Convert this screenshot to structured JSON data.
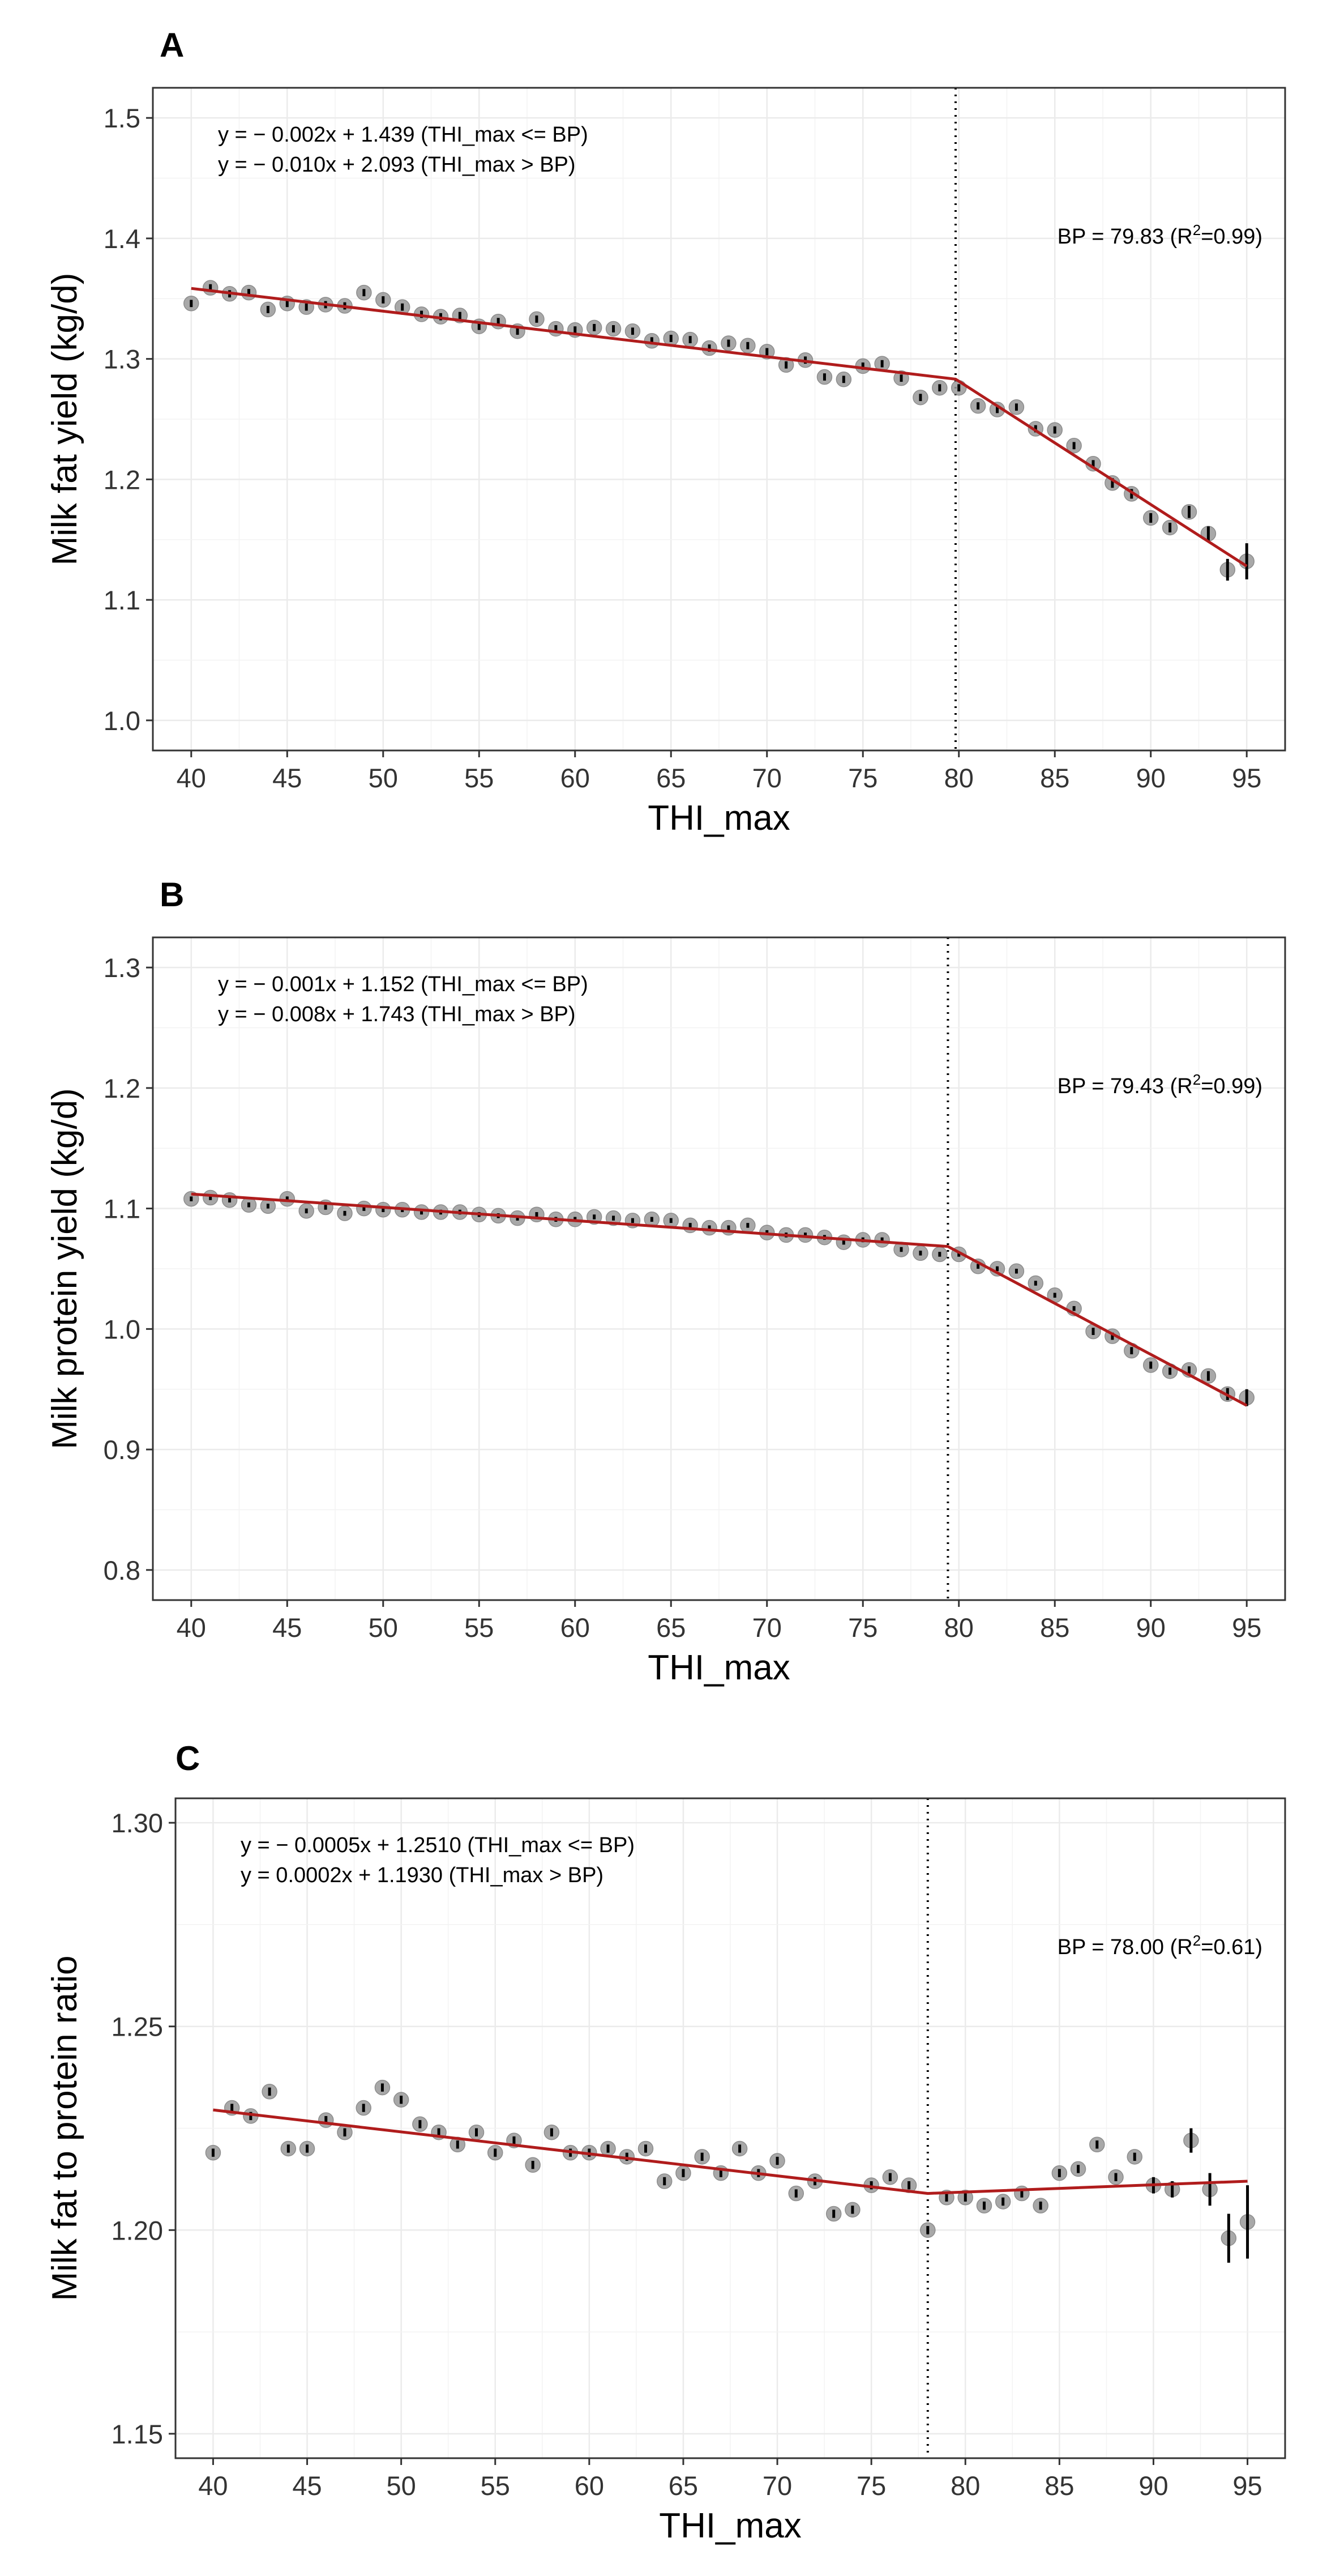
{
  "charts": [
    {
      "panel_label": "A",
      "chart_data": {
        "type": "scatter",
        "title": "",
        "xlabel": "THI_max",
        "ylabel": "Milk fat yield (kg/d)",
        "xlim": [
          38.0,
          97.0
        ],
        "ylim": [
          0.975,
          1.525
        ],
        "xticks": [
          40,
          45,
          50,
          55,
          60,
          65,
          70,
          75,
          80,
          85,
          90,
          95
        ],
        "xtick_labels": [
          "40",
          "45",
          "50",
          "55",
          "60",
          "65",
          "70",
          "75",
          "80",
          "85",
          "90",
          "95"
        ],
        "yticks": [
          1.0,
          1.1,
          1.2,
          1.3,
          1.4,
          1.5
        ],
        "ytick_labels": [
          "1.0",
          "1.1",
          "1.2",
          "1.3",
          "1.4",
          "1.5"
        ],
        "equations": [
          "y = − 0.002x + 1.439 (THI_max <= BP)",
          "y = − 0.010x + 2.093 (THI_max > BP)"
        ],
        "bp_label": "BP = 79.83 (R",
        "bp_r2_sup": "2",
        "bp_r2_rest": "=0.99)",
        "breakpoint": 79.83,
        "x": [
          40,
          41,
          42,
          43,
          44,
          45,
          46,
          47,
          48,
          49,
          50,
          51,
          52,
          53,
          54,
          55,
          56,
          57,
          58,
          59,
          60,
          61,
          62,
          63,
          64,
          65,
          66,
          67,
          68,
          69,
          70,
          71,
          72,
          73,
          74,
          75,
          76,
          77,
          78,
          79,
          80,
          81,
          82,
          83,
          84,
          85,
          86,
          87,
          88,
          89,
          90,
          91,
          92,
          93,
          94,
          95
        ],
        "y": [
          1.346,
          1.359,
          1.354,
          1.355,
          1.341,
          1.346,
          1.343,
          1.345,
          1.344,
          1.355,
          1.349,
          1.343,
          1.337,
          1.335,
          1.336,
          1.327,
          1.331,
          1.323,
          1.333,
          1.325,
          1.324,
          1.326,
          1.325,
          1.323,
          1.315,
          1.317,
          1.316,
          1.309,
          1.313,
          1.311,
          1.306,
          1.295,
          1.299,
          1.285,
          1.283,
          1.294,
          1.296,
          1.284,
          1.268,
          1.276,
          1.276,
          1.261,
          1.258,
          1.26,
          1.242,
          1.241,
          1.228,
          1.213,
          1.197,
          1.188,
          1.168,
          1.16,
          1.173,
          1.155,
          1.125,
          1.132
        ],
        "err": [
          0.003,
          0.003,
          0.003,
          0.003,
          0.003,
          0.003,
          0.003,
          0.003,
          0.003,
          0.003,
          0.003,
          0.003,
          0.003,
          0.003,
          0.003,
          0.003,
          0.003,
          0.003,
          0.003,
          0.003,
          0.003,
          0.003,
          0.003,
          0.003,
          0.003,
          0.003,
          0.003,
          0.003,
          0.003,
          0.003,
          0.003,
          0.003,
          0.003,
          0.003,
          0.003,
          0.003,
          0.003,
          0.003,
          0.003,
          0.003,
          0.003,
          0.003,
          0.003,
          0.003,
          0.003,
          0.003,
          0.003,
          0.003,
          0.004,
          0.004,
          0.004,
          0.004,
          0.005,
          0.006,
          0.009,
          0.015
        ],
        "fit_line": {
          "x": [
            40,
            79.83,
            95
          ],
          "y": [
            1.3585,
            1.2832,
            1.128
          ]
        },
        "line_color": "#b01c1c",
        "point_color": "#999999"
      }
    },
    {
      "panel_label": "B",
      "chart_data": {
        "type": "scatter",
        "title": "",
        "xlabel": "THI_max",
        "ylabel": "Milk protein yield (kg/d)",
        "xlim": [
          38.0,
          97.0
        ],
        "ylim": [
          0.775,
          1.325
        ],
        "xticks": [
          40,
          45,
          50,
          55,
          60,
          65,
          70,
          75,
          80,
          85,
          90,
          95
        ],
        "xtick_labels": [
          "40",
          "45",
          "50",
          "55",
          "60",
          "65",
          "70",
          "75",
          "80",
          "85",
          "90",
          "95"
        ],
        "yticks": [
          0.8,
          0.9,
          1.0,
          1.1,
          1.2,
          1.3
        ],
        "ytick_labels": [
          "0.8",
          "0.9",
          "1.0",
          "1.1",
          "1.2",
          "1.3"
        ],
        "equations": [
          "y = − 0.001x + 1.152 (THI_max <= BP)",
          "y = − 0.008x + 1.743 (THI_max > BP)"
        ],
        "bp_label": "BP = 79.43 (R",
        "bp_r2_sup": "2",
        "bp_r2_rest": "=0.99)",
        "breakpoint": 79.43,
        "x": [
          40,
          41,
          42,
          43,
          44,
          45,
          46,
          47,
          48,
          49,
          50,
          51,
          52,
          53,
          54,
          55,
          56,
          57,
          58,
          59,
          60,
          61,
          62,
          63,
          64,
          65,
          66,
          67,
          68,
          69,
          70,
          71,
          72,
          73,
          74,
          75,
          76,
          77,
          78,
          79,
          80,
          81,
          82,
          83,
          84,
          85,
          86,
          87,
          88,
          89,
          90,
          91,
          92,
          93,
          94,
          95
        ],
        "y": [
          1.108,
          1.109,
          1.107,
          1.103,
          1.102,
          1.108,
          1.098,
          1.101,
          1.096,
          1.1,
          1.099,
          1.099,
          1.097,
          1.097,
          1.097,
          1.095,
          1.094,
          1.092,
          1.095,
          1.091,
          1.091,
          1.093,
          1.092,
          1.09,
          1.091,
          1.09,
          1.086,
          1.084,
          1.084,
          1.086,
          1.08,
          1.078,
          1.078,
          1.076,
          1.072,
          1.074,
          1.074,
          1.066,
          1.063,
          1.062,
          1.062,
          1.052,
          1.05,
          1.048,
          1.038,
          1.028,
          1.017,
          0.998,
          0.994,
          0.982,
          0.97,
          0.965,
          0.966,
          0.961,
          0.946,
          0.943
        ],
        "err": [
          0.002,
          0.002,
          0.002,
          0.002,
          0.002,
          0.002,
          0.002,
          0.002,
          0.002,
          0.002,
          0.002,
          0.002,
          0.002,
          0.002,
          0.002,
          0.002,
          0.002,
          0.002,
          0.002,
          0.002,
          0.002,
          0.002,
          0.002,
          0.002,
          0.002,
          0.002,
          0.002,
          0.002,
          0.002,
          0.002,
          0.002,
          0.002,
          0.002,
          0.002,
          0.002,
          0.002,
          0.002,
          0.002,
          0.002,
          0.002,
          0.002,
          0.002,
          0.002,
          0.002,
          0.002,
          0.002,
          0.002,
          0.003,
          0.003,
          0.003,
          0.003,
          0.003,
          0.003,
          0.004,
          0.005,
          0.007
        ],
        "fit_line": {
          "x": [
            40,
            79.43,
            95
          ],
          "y": [
            1.112,
            1.0685,
            0.9365
          ]
        },
        "line_color": "#b01c1c",
        "point_color": "#999999"
      }
    },
    {
      "panel_label": "C",
      "chart_data": {
        "type": "scatter",
        "title": "",
        "xlabel": "THI_max",
        "ylabel": "Milk fat to protein ratio",
        "xlim": [
          38.0,
          97.0
        ],
        "ylim": [
          1.144,
          1.306
        ],
        "xticks": [
          40,
          45,
          50,
          55,
          60,
          65,
          70,
          75,
          80,
          85,
          90,
          95
        ],
        "xtick_labels": [
          "40",
          "45",
          "50",
          "55",
          "60",
          "65",
          "70",
          "75",
          "80",
          "85",
          "90",
          "95"
        ],
        "yticks": [
          1.15,
          1.2,
          1.25,
          1.3
        ],
        "ytick_labels": [
          "1.15",
          "1.20",
          "1.25",
          "1.30"
        ],
        "equations": [
          "y = − 0.0005x + 1.2510 (THI_max <= BP)",
          "y =  0.0002x + 1.1930 (THI_max > BP)"
        ],
        "bp_label": "BP = 78.00 (R",
        "bp_r2_sup": "2",
        "bp_r2_rest": "=0.61)",
        "breakpoint": 78.0,
        "x": [
          40,
          41,
          42,
          43,
          44,
          45,
          46,
          47,
          48,
          49,
          50,
          51,
          52,
          53,
          54,
          55,
          56,
          57,
          58,
          59,
          60,
          61,
          62,
          63,
          64,
          65,
          66,
          67,
          68,
          69,
          70,
          71,
          72,
          73,
          74,
          75,
          76,
          77,
          78,
          79,
          80,
          81,
          82,
          83,
          84,
          85,
          86,
          87,
          88,
          89,
          90,
          91,
          92,
          93,
          94,
          95
        ],
        "y": [
          1.219,
          1.23,
          1.228,
          1.234,
          1.22,
          1.22,
          1.227,
          1.224,
          1.23,
          1.235,
          1.232,
          1.226,
          1.224,
          1.221,
          1.224,
          1.219,
          1.222,
          1.216,
          1.224,
          1.219,
          1.219,
          1.22,
          1.218,
          1.22,
          1.212,
          1.214,
          1.218,
          1.214,
          1.22,
          1.214,
          1.217,
          1.209,
          1.212,
          1.204,
          1.205,
          1.211,
          1.213,
          1.211,
          1.2,
          1.208,
          1.208,
          1.206,
          1.207,
          1.209,
          1.206,
          1.214,
          1.215,
          1.221,
          1.213,
          1.218,
          1.211,
          1.21,
          1.222,
          1.21,
          1.198,
          1.202
        ],
        "err": [
          0.001,
          0.001,
          0.001,
          0.001,
          0.001,
          0.001,
          0.001,
          0.001,
          0.001,
          0.001,
          0.001,
          0.001,
          0.001,
          0.001,
          0.001,
          0.001,
          0.001,
          0.001,
          0.001,
          0.001,
          0.001,
          0.001,
          0.001,
          0.001,
          0.001,
          0.001,
          0.001,
          0.001,
          0.001,
          0.001,
          0.001,
          0.001,
          0.001,
          0.001,
          0.001,
          0.001,
          0.001,
          0.001,
          0.001,
          0.001,
          0.001,
          0.001,
          0.001,
          0.001,
          0.001,
          0.001,
          0.001,
          0.001,
          0.001,
          0.001,
          0.002,
          0.002,
          0.003,
          0.004,
          0.006,
          0.009
        ],
        "fit_line": {
          "x": [
            40,
            78.0,
            95
          ],
          "y": [
            1.2295,
            1.209,
            1.212
          ]
        },
        "line_color": "#b01c1c",
        "point_color": "#999999"
      }
    }
  ]
}
